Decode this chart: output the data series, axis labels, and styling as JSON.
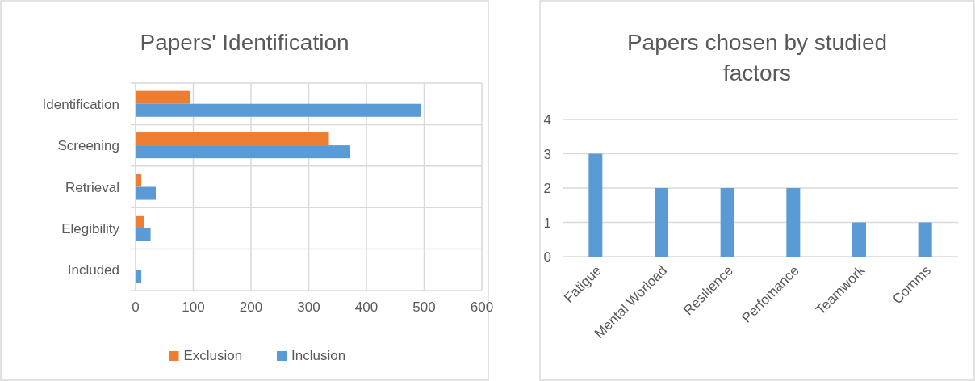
{
  "chart_data": [
    {
      "type": "bar",
      "title": "Papers' Identification",
      "orientation": "horizontal",
      "categories": [
        "Identification",
        "Screening",
        "Retrieval",
        "Elegibility",
        "Included"
      ],
      "series": [
        {
          "name": "Exclusion",
          "color": "#ed7d31",
          "values": [
            95,
            335,
            10,
            14,
            0
          ]
        },
        {
          "name": "Inclusion",
          "color": "#5b9bd5",
          "values": [
            494,
            372,
            35,
            26,
            10
          ]
        }
      ],
      "xlim": [
        0,
        600
      ],
      "xticks": [
        0,
        100,
        200,
        300,
        400,
        500,
        600
      ],
      "grid": true,
      "legend": "bottom"
    },
    {
      "type": "bar",
      "title": "Papers chosen by studied factors",
      "categories": [
        "Fatigue",
        "Mental Worload",
        "Resilience",
        "Perfomance",
        "Teamwork",
        "Comms"
      ],
      "series": [
        {
          "color": "#5b9bd5",
          "values": [
            3,
            2,
            2,
            2,
            1,
            1
          ]
        }
      ],
      "ylim": [
        0,
        4
      ],
      "yticks": [
        0,
        1,
        2,
        3,
        4
      ],
      "grid": "y"
    }
  ]
}
